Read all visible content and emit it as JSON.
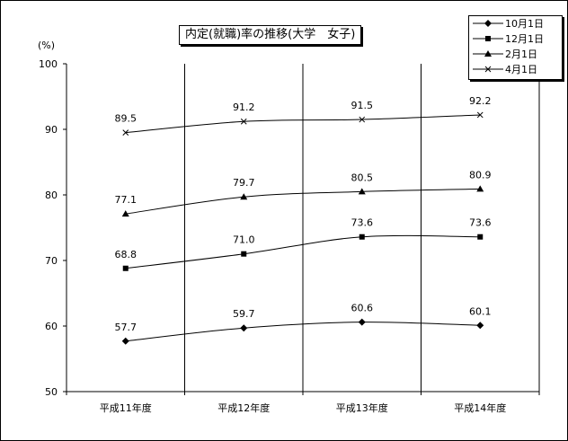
{
  "chart_data": {
    "type": "line",
    "title": "内定(就職)率の推移(大学　女子)",
    "ylabel": "(%)",
    "xlabel": "",
    "ylim": [
      50,
      100
    ],
    "yticks": [
      50,
      60,
      70,
      80,
      90,
      100
    ],
    "categories": [
      "平成11年度",
      "平成12年度",
      "平成13年度",
      "平成14年度"
    ],
    "grid": "vertical category separators only",
    "legend_position": "top-right",
    "series": [
      {
        "name": "10月1日",
        "marker": "diamond",
        "values": [
          57.7,
          59.7,
          60.6,
          60.1
        ],
        "labels": [
          "57.7",
          "59.7",
          "60.6",
          "60.1"
        ]
      },
      {
        "name": "12月1日",
        "marker": "square",
        "values": [
          68.8,
          71.0,
          73.6,
          73.6
        ],
        "labels": [
          "68.8",
          "71.0",
          "73.6",
          "73.6"
        ]
      },
      {
        "name": "2月1日",
        "marker": "triangle",
        "values": [
          77.1,
          79.7,
          80.5,
          80.9
        ],
        "labels": [
          "77.1",
          "79.7",
          "80.5",
          "80.9"
        ]
      },
      {
        "name": "4月1日",
        "marker": "cross",
        "values": [
          89.5,
          91.2,
          91.5,
          92.2
        ],
        "labels": [
          "89.5",
          "91.2",
          "91.5",
          "92.2"
        ]
      }
    ],
    "colors": {
      "line": "#000000",
      "background": "#ffffff"
    }
  }
}
